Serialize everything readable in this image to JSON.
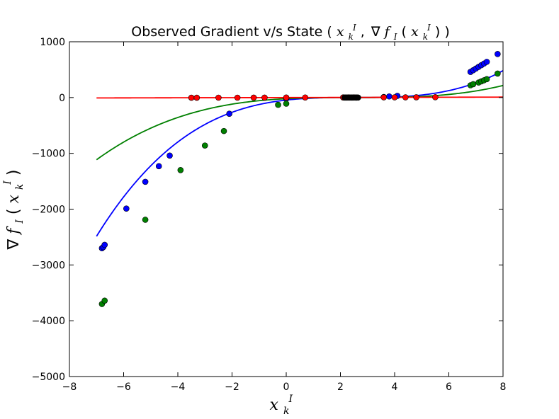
{
  "chart_data": {
    "type": "scatter",
    "title_text": "Observed Gradient v/s State",
    "title_math": {
      "open": "(",
      "x": "x",
      "sub_k": "k",
      "sup_I": "I",
      "comma": ",",
      "nabla": "∇",
      "f": "f",
      "sub_I": "I",
      "lparen": "(",
      "rparen": ")",
      "close": ")"
    },
    "xlabel": {
      "x": "x",
      "sub": "k",
      "sup": "I"
    },
    "ylabel": {
      "nabla": "∇",
      "f": "f",
      "sub_I": "I",
      "lparen": "(",
      "x": "x",
      "sub_k": "k",
      "sup_I": "I",
      "rparen": ")"
    },
    "xlim": [
      -8,
      8
    ],
    "ylim": [
      -5000,
      1000
    ],
    "xticks": [
      -8,
      -6,
      -4,
      -2,
      0,
      2,
      4,
      6,
      8
    ],
    "yticks": [
      -5000,
      -4000,
      -3000,
      -2000,
      -1000,
      0,
      1000
    ],
    "xtick_labels": [
      "−8",
      "−6",
      "−4",
      "−2",
      "0",
      "2",
      "4",
      "6",
      "8"
    ],
    "ytick_labels": [
      "−5000",
      "−4000",
      "−3000",
      "−2000",
      "−1000",
      "0",
      "1000"
    ],
    "grid": false,
    "curve_domain": [
      -7,
      8
    ],
    "curves": [
      {
        "color": "#0000ff",
        "coef": [
          0,
          0,
          0,
          2.9
        ],
        "x0": 2.5,
        "ylift": 0
      },
      {
        "color": "#008000",
        "coef": [
          0,
          0,
          0,
          1.3
        ],
        "x0": 2.5,
        "ylift": 0
      },
      {
        "color": "#ff0000",
        "coef": [
          0,
          1.0
        ],
        "x0": 0,
        "ylift": 0
      }
    ],
    "series": [
      {
        "color": "#0000ff",
        "points": [
          [
            -6.8,
            -2700
          ],
          [
            -6.75,
            -2680
          ],
          [
            -6.7,
            -2640
          ],
          [
            -5.9,
            -1990
          ],
          [
            -5.2,
            -1510
          ],
          [
            -4.7,
            -1230
          ],
          [
            -4.3,
            -1040
          ],
          [
            -2.1,
            -290
          ],
          [
            0.0,
            -20
          ],
          [
            2.2,
            0
          ],
          [
            2.3,
            0
          ],
          [
            2.4,
            0
          ],
          [
            2.5,
            0
          ],
          [
            2.6,
            0
          ],
          [
            3.6,
            10
          ],
          [
            3.8,
            20
          ],
          [
            4.1,
            30
          ],
          [
            6.8,
            460
          ],
          [
            6.9,
            490
          ],
          [
            7.0,
            520
          ],
          [
            7.1,
            550
          ],
          [
            7.2,
            580
          ],
          [
            7.3,
            610
          ],
          [
            7.4,
            640
          ],
          [
            7.8,
            780
          ]
        ]
      },
      {
        "color": "#008000",
        "points": [
          [
            -6.8,
            -3700
          ],
          [
            -6.7,
            -3640
          ],
          [
            -5.2,
            -2190
          ],
          [
            -3.9,
            -1300
          ],
          [
            -3.0,
            -860
          ],
          [
            -2.3,
            -600
          ],
          [
            -0.3,
            -130
          ],
          [
            0.0,
            -110
          ],
          [
            2.2,
            0
          ],
          [
            2.4,
            0
          ],
          [
            2.6,
            0
          ],
          [
            6.8,
            220
          ],
          [
            6.9,
            240
          ],
          [
            7.1,
            270
          ],
          [
            7.2,
            290
          ],
          [
            7.3,
            310
          ],
          [
            7.4,
            330
          ],
          [
            7.8,
            430
          ]
        ]
      },
      {
        "color": "#ff0000",
        "points": [
          [
            -3.5,
            -3
          ],
          [
            -3.3,
            -3
          ],
          [
            -2.5,
            -2
          ],
          [
            -1.8,
            -2
          ],
          [
            -1.2,
            -1
          ],
          [
            -0.8,
            -1
          ],
          [
            0.0,
            0
          ],
          [
            0.7,
            1
          ],
          [
            2.1,
            2
          ],
          [
            2.3,
            2
          ],
          [
            2.5,
            2
          ],
          [
            3.6,
            4
          ],
          [
            4.0,
            4
          ],
          [
            4.4,
            4
          ],
          [
            4.8,
            5
          ],
          [
            5.5,
            6
          ]
        ]
      },
      {
        "color": "#000000",
        "points": [
          [
            2.15,
            0
          ],
          [
            2.25,
            0
          ],
          [
            2.35,
            0
          ],
          [
            2.45,
            0
          ],
          [
            2.55,
            0
          ],
          [
            2.65,
            0
          ]
        ]
      }
    ]
  }
}
